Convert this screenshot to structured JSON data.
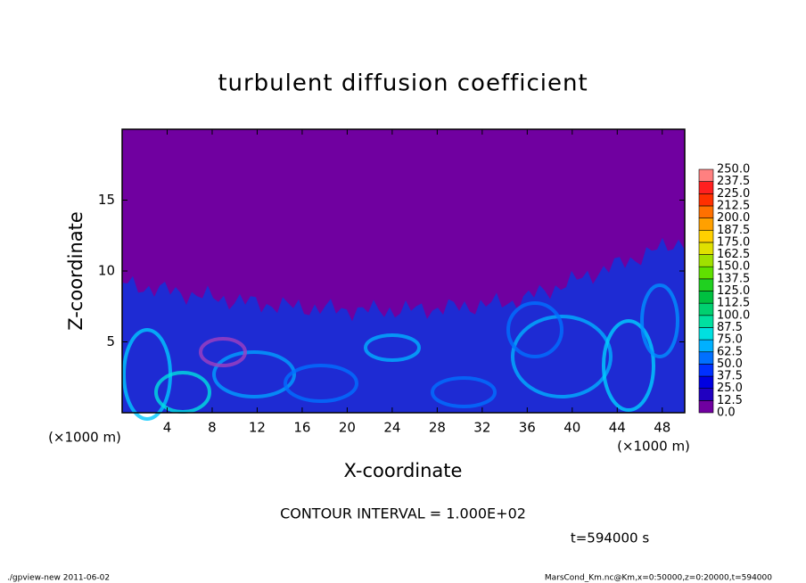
{
  "chart_data": {
    "type": "contour",
    "title": "turbulent diffusion coefficient",
    "xlabel": "X-coordinate",
    "ylabel": "Z-coordinate",
    "axis_unit": "(×1000 m)",
    "xlim": [
      0,
      50
    ],
    "xticks": [
      4,
      8,
      12,
      16,
      20,
      24,
      28,
      32,
      36,
      40,
      44,
      48
    ],
    "ylim": [
      0,
      20
    ],
    "yticks": [
      5,
      10,
      15
    ],
    "background_color": "#7000a0",
    "colorbar": {
      "levels": [
        {
          "value": 0,
          "label": "0.0"
        },
        {
          "value": 12.5,
          "label": "12.5"
        },
        {
          "value": 25,
          "label": "25.0"
        },
        {
          "value": 37.5,
          "label": "37.5"
        },
        {
          "value": 50,
          "label": "50.0"
        },
        {
          "value": 62.5,
          "label": "62.5"
        },
        {
          "value": 75,
          "label": "75.0"
        },
        {
          "value": 87.5,
          "label": "87.5"
        },
        {
          "value": 100,
          "label": "100.0"
        },
        {
          "value": 112.5,
          "label": "112.5"
        },
        {
          "value": 125,
          "label": "125.0"
        },
        {
          "value": 137.5,
          "label": "137.5"
        },
        {
          "value": 150,
          "label": "150.0"
        },
        {
          "value": 162.5,
          "label": "162.5"
        },
        {
          "value": 175,
          "label": "175.0"
        },
        {
          "value": 187.5,
          "label": "187.5"
        },
        {
          "value": 200,
          "label": "200.0"
        },
        {
          "value": 212.5,
          "label": "212.5"
        },
        {
          "value": 225,
          "label": "225.0"
        },
        {
          "value": 237.5,
          "label": "237.5"
        },
        {
          "value": 250,
          "label": "250.0"
        }
      ],
      "colors": [
        "#7000a0",
        "#2000c0",
        "#0000e0",
        "#0030ff",
        "#0070ff",
        "#00b0ff",
        "#00e0e0",
        "#00e0a0",
        "#00d070",
        "#00c040",
        "#20d020",
        "#60e000",
        "#a0e000",
        "#e0e000",
        "#ffd000",
        "#ffa000",
        "#ff7000",
        "#ff3000",
        "#ff2020",
        "#ff8080"
      ]
    },
    "contour_interval": "CONTOUR INTERVAL = 1.000E+02",
    "time_label": "t=594000 s",
    "footer_left": "./gpview-new  2011-06-02",
    "footer_right": "MarsCond_Km.nc@Km,x=0:50000,z=0:20000,t=594000"
  }
}
